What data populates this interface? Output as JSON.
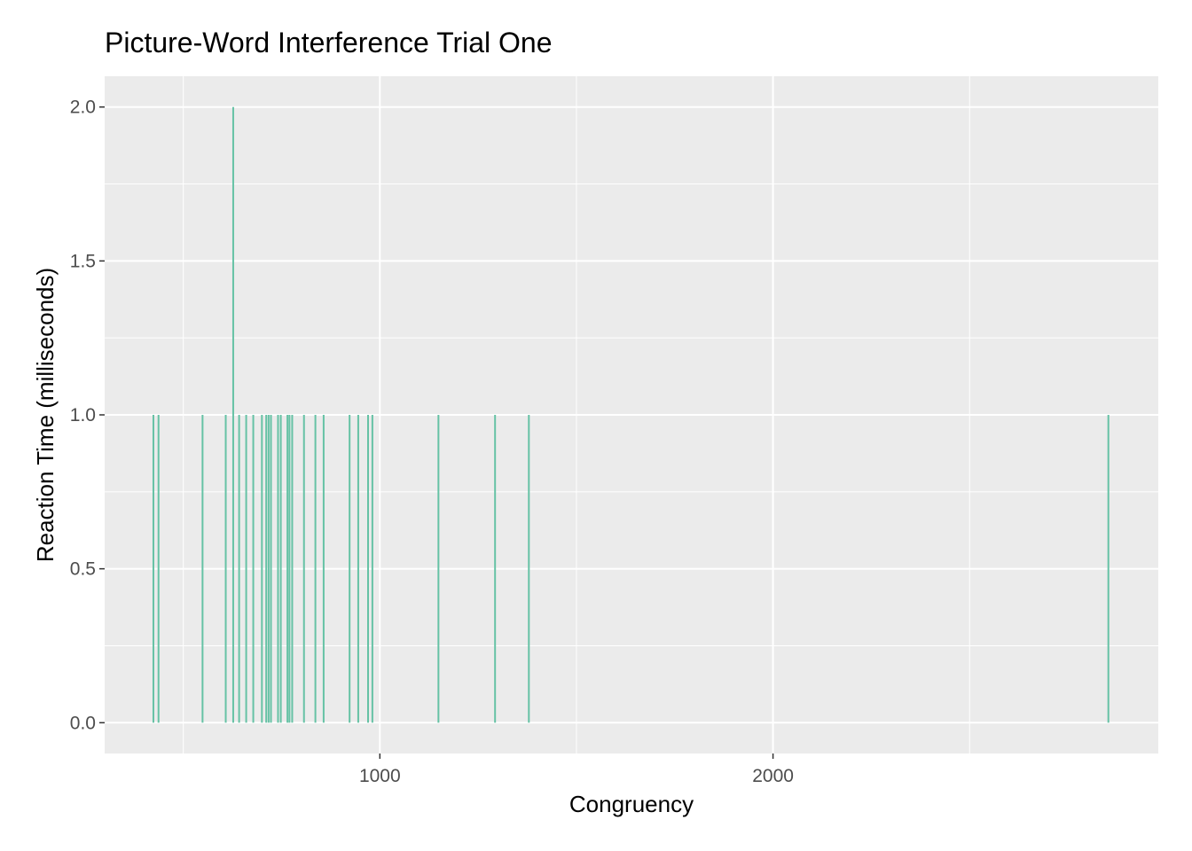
{
  "chart_data": {
    "type": "bar",
    "title": "Picture-Word Interference Trial One",
    "xlabel": "Congruency",
    "ylabel": "Reaction Time (milliseconds)",
    "xlim": [
      300,
      2980
    ],
    "ylim": [
      -0.1,
      2.1
    ],
    "x_ticks": [
      1000,
      2000
    ],
    "x_tick_labels": [
      "1000",
      "2000"
    ],
    "x_minor_ticks": [
      500,
      1500,
      2500
    ],
    "y_ticks": [
      0,
      0.5,
      1,
      1.5,
      2
    ],
    "y_tick_labels": [
      "0.0",
      "0.5",
      "1.0",
      "1.5",
      "2.0"
    ],
    "y_minor_ticks": [
      0.25,
      0.75,
      1.25,
      1.75
    ],
    "bar_color": "#66c2a5",
    "panel_color": "#ebebeb",
    "grid": true,
    "legend": "none",
    "points": [
      {
        "x": 424,
        "y": 1
      },
      {
        "x": 437,
        "y": 1
      },
      {
        "x": 549,
        "y": 1
      },
      {
        "x": 608,
        "y": 1
      },
      {
        "x": 627,
        "y": 2
      },
      {
        "x": 642,
        "y": 1
      },
      {
        "x": 660,
        "y": 1
      },
      {
        "x": 678,
        "y": 1
      },
      {
        "x": 700,
        "y": 1
      },
      {
        "x": 711,
        "y": 1
      },
      {
        "x": 717,
        "y": 1
      },
      {
        "x": 723,
        "y": 1
      },
      {
        "x": 741,
        "y": 1
      },
      {
        "x": 748,
        "y": 1
      },
      {
        "x": 765,
        "y": 1
      },
      {
        "x": 770,
        "y": 1
      },
      {
        "x": 777,
        "y": 1
      },
      {
        "x": 807,
        "y": 1
      },
      {
        "x": 836,
        "y": 1
      },
      {
        "x": 857,
        "y": 1
      },
      {
        "x": 923,
        "y": 1
      },
      {
        "x": 945,
        "y": 1
      },
      {
        "x": 970,
        "y": 1
      },
      {
        "x": 981,
        "y": 1
      },
      {
        "x": 1149,
        "y": 1
      },
      {
        "x": 1293,
        "y": 1
      },
      {
        "x": 1379,
        "y": 1
      },
      {
        "x": 2853,
        "y": 1
      }
    ]
  }
}
